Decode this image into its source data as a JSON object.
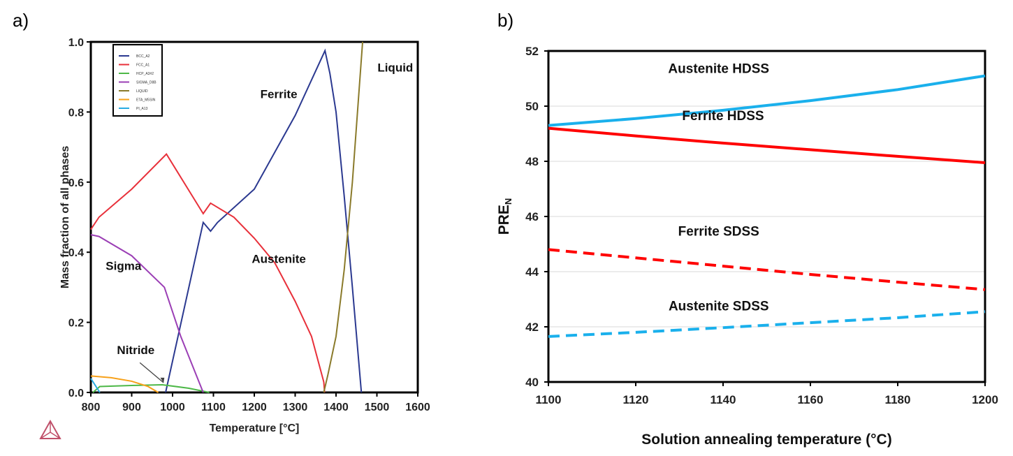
{
  "panel_labels": [
    "a)",
    "b)"
  ],
  "chart_data": [
    {
      "type": "line",
      "xlabel": "Temperature [°C]",
      "ylabel": "Mass fraction of all phases",
      "xlim": [
        800,
        1600
      ],
      "ylim": [
        0,
        1.0
      ],
      "xticks": [
        "800",
        "900",
        "1000",
        "1100",
        "1200",
        "1300",
        "1400",
        "1500",
        "1600"
      ],
      "yticks": [
        "0.0",
        "0.2",
        "0.4",
        "0.6",
        "0.8",
        "1.0"
      ],
      "legend_placement": "top-left",
      "grid": false,
      "series": [
        {
          "name": "BCC_A2",
          "color": "#2b3990",
          "points": [
            [
              983,
              0
            ],
            [
              1075,
              0.485
            ],
            [
              1093,
              0.46
            ],
            [
              1110,
              0.485
            ],
            [
              1200,
              0.58
            ],
            [
              1300,
              0.79
            ],
            [
              1373,
              0.975
            ],
            [
              1385,
              0.91
            ],
            [
              1400,
              0.8
            ],
            [
              1420,
              0.56
            ],
            [
              1440,
              0.3
            ],
            [
              1462,
              0
            ]
          ]
        },
        {
          "name": "FCC_A1",
          "color": "#e8303a",
          "points": [
            [
              800,
              0.465
            ],
            [
              820,
              0.5
            ],
            [
              900,
              0.58
            ],
            [
              985,
              0.68
            ],
            [
              1075,
              0.51
            ],
            [
              1093,
              0.54
            ],
            [
              1150,
              0.5
            ],
            [
              1200,
              0.44
            ],
            [
              1250,
              0.37
            ],
            [
              1300,
              0.26
            ],
            [
              1340,
              0.16
            ],
            [
              1370,
              0.03
            ],
            [
              1372,
              0
            ]
          ]
        },
        {
          "name": "HCP_A3#2",
          "color": "#4db848",
          "points": [
            [
              805,
              0
            ],
            [
              822,
              0.017
            ],
            [
              900,
              0.02
            ],
            [
              975,
              0.022
            ],
            [
              1040,
              0.012
            ],
            [
              1090,
              0
            ]
          ]
        },
        {
          "name": "SIGMA_D8B",
          "color": "#9b3fb5",
          "points": [
            [
              800,
              0.45
            ],
            [
              820,
              0.445
            ],
            [
              900,
              0.39
            ],
            [
              980,
              0.3
            ],
            [
              1020,
              0.16
            ],
            [
              1075,
              0
            ]
          ]
        },
        {
          "name": "LIQUID",
          "color": "#8a7a2a",
          "points": [
            [
              1370,
              0
            ],
            [
              1380,
              0.05
            ],
            [
              1400,
              0.16
            ],
            [
              1420,
              0.35
            ],
            [
              1440,
              0.6
            ],
            [
              1465,
              1.0
            ]
          ]
        },
        {
          "name": "ETA_M5SIN",
          "color": "#f7a11a",
          "points": [
            [
              800,
              0.047
            ],
            [
              850,
              0.042
            ],
            [
              900,
              0.032
            ],
            [
              940,
              0.017
            ],
            [
              965,
              0
            ]
          ]
        },
        {
          "name": "PI_A13",
          "color": "#29abe2",
          "points": [
            [
              800,
              0.04
            ],
            [
              822,
              0
            ]
          ]
        }
      ],
      "annotations": [
        {
          "text": "Ferrite",
          "x": 1260,
          "y": 0.84
        },
        {
          "text": "Liquid",
          "x": 1545,
          "y": 0.915
        },
        {
          "text": "Austenite",
          "x": 1260,
          "y": 0.37
        },
        {
          "text": "Sigma",
          "x": 880,
          "y": 0.35
        },
        {
          "text": "Nitride",
          "x": 910,
          "y": 0.11
        }
      ]
    },
    {
      "type": "line",
      "xlabel": "Solution annealing temperature (°C)",
      "ylabel": "PRE",
      "ylabel_subscript": "N",
      "xlim": [
        1100,
        1200
      ],
      "ylim": [
        40,
        52
      ],
      "xticks": [
        "1100",
        "1120",
        "1140",
        "1160",
        "1180",
        "1200"
      ],
      "yticks": [
        "40",
        "42",
        "44",
        "46",
        "48",
        "50",
        "52"
      ],
      "grid": true,
      "series": [
        {
          "name": "Austenite HDSS",
          "color": "#1ab0ec",
          "dash": false,
          "x": [
            1100,
            1120,
            1140,
            1160,
            1180,
            1200
          ],
          "y": [
            49.3,
            49.55,
            49.85,
            50.2,
            50.6,
            51.1
          ]
        },
        {
          "name": "Ferrite HDSS",
          "color": "#ff0000",
          "dash": false,
          "x": [
            1100,
            1120,
            1140,
            1160,
            1180,
            1200
          ],
          "y": [
            49.2,
            48.92,
            48.66,
            48.42,
            48.18,
            47.95
          ]
        },
        {
          "name": "Ferrite SDSS",
          "color": "#ff0000",
          "dash": true,
          "x": [
            1100,
            1120,
            1140,
            1160,
            1180,
            1200
          ],
          "y": [
            44.8,
            44.5,
            44.2,
            43.9,
            43.62,
            43.35
          ]
        },
        {
          "name": "Austenite SDSS",
          "color": "#1ab0ec",
          "dash": true,
          "x": [
            1100,
            1120,
            1140,
            1160,
            1180,
            1200
          ],
          "y": [
            41.65,
            41.8,
            41.97,
            42.15,
            42.33,
            42.55
          ]
        }
      ],
      "annotations": [
        {
          "text": "Austenite HDSS",
          "x": 1139,
          "y": 51.2
        },
        {
          "text": "Ferrite HDSS",
          "x": 1140,
          "y": 49.5
        },
        {
          "text": "Ferrite SDSS",
          "x": 1139,
          "y": 45.3
        },
        {
          "text": "Austenite SDSS",
          "x": 1139,
          "y": 42.6
        }
      ]
    }
  ]
}
